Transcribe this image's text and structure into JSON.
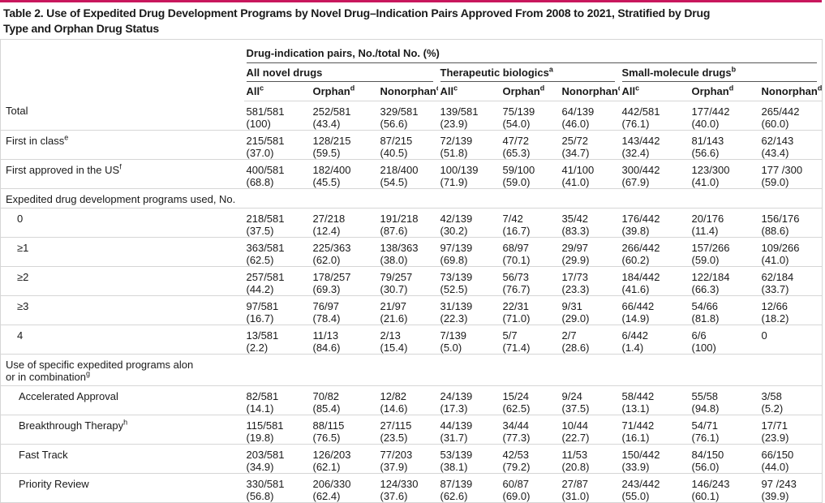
{
  "title": "Table 2. Use of Expedited Drug Development Programs by Novel Drug–Indication Pairs Approved From 2008 to 2021, Stratified by Drug Type and Orphan Drug Status",
  "header": {
    "spanner": "Drug-indication pairs, No./total No. (%)",
    "groups": [
      {
        "text": "All novel drugs"
      },
      {
        "text": "Therapeutic biologics",
        "sup": "a"
      },
      {
        "text": "Small-molecule drugs",
        "sup": "b"
      }
    ],
    "columns": [
      {
        "text": "All",
        "sup": "c"
      },
      {
        "text": "Orphan",
        "sup": "d"
      },
      {
        "text": "Nonorphan",
        "sup": "d"
      },
      {
        "text": "All",
        "sup": "c"
      },
      {
        "text": "Orphan",
        "sup": "d"
      },
      {
        "text": "Nonorphan",
        "sup": "d"
      },
      {
        "text": "All",
        "sup": "c"
      },
      {
        "text": "Orphan",
        "sup": "d"
      },
      {
        "text": "Nonorphan",
        "sup": "d"
      }
    ]
  },
  "rows": [
    {
      "label": "Total",
      "cells": [
        [
          "581/581",
          "(100)"
        ],
        [
          "252/581",
          "(43.4)"
        ],
        [
          "329/581",
          "(56.6)"
        ],
        [
          "139/581",
          "(23.9)"
        ],
        [
          "75/139",
          "(54.0)"
        ],
        [
          "64/139",
          "(46.0)"
        ],
        [
          "442/581",
          "(76.1)"
        ],
        [
          "177/442",
          "(40.0)"
        ],
        [
          "265/442",
          "(60.0)"
        ]
      ]
    },
    {
      "label": "First in class",
      "sup": "e",
      "cells": [
        [
          "215/581",
          "(37.0)"
        ],
        [
          "128/215",
          "(59.5)"
        ],
        [
          "87/215",
          "(40.5)"
        ],
        [
          "72/139",
          "(51.8)"
        ],
        [
          "47/72",
          "(65.3)"
        ],
        [
          "25/72",
          "(34.7)"
        ],
        [
          "143/442",
          "(32.4)"
        ],
        [
          "81/143",
          "(56.6)"
        ],
        [
          "62/143",
          "(43.4)"
        ]
      ]
    },
    {
      "label": "First approved in the US",
      "sup": "f",
      "cells": [
        [
          "400/581",
          "(68.8)"
        ],
        [
          "182/400",
          "(45.5)"
        ],
        [
          "218/400",
          "(54.5)"
        ],
        [
          "100/139",
          "(71.9)"
        ],
        [
          "59/100",
          "(59.0)"
        ],
        [
          "41/100",
          "(41.0)"
        ],
        [
          "300/442",
          "(67.9)"
        ],
        [
          "123/300",
          "(41.0)"
        ],
        [
          "177 /300",
          "(59.0)"
        ]
      ]
    }
  ],
  "sections": [
    {
      "title": [
        "Expedited drug development programs used, No."
      ],
      "rows": [
        {
          "label": "0",
          "cells": [
            [
              "218/581",
              "(37.5)"
            ],
            [
              "27/218",
              "(12.4)"
            ],
            [
              "191/218",
              "(87.6)"
            ],
            [
              "42/139",
              "(30.2)"
            ],
            [
              "7/42",
              "(16.7)"
            ],
            [
              "35/42",
              "(83.3)"
            ],
            [
              "176/442",
              "(39.8)"
            ],
            [
              "20/176",
              "(11.4)"
            ],
            [
              "156/176",
              "(88.6)"
            ]
          ]
        },
        {
          "label": "≥1",
          "cells": [
            [
              "363/581",
              "(62.5)"
            ],
            [
              "225/363",
              "(62.0)"
            ],
            [
              "138/363",
              "(38.0)"
            ],
            [
              "97/139",
              "(69.8)"
            ],
            [
              "68/97",
              "(70.1)"
            ],
            [
              "29/97",
              "(29.9)"
            ],
            [
              "266/442",
              "(60.2)"
            ],
            [
              "157/266",
              "(59.0)"
            ],
            [
              "109/266",
              "(41.0)"
            ]
          ]
        },
        {
          "label": "≥2",
          "cells": [
            [
              "257/581",
              "(44.2)"
            ],
            [
              "178/257",
              "(69.3)"
            ],
            [
              "79/257",
              "(30.7)"
            ],
            [
              "73/139",
              "(52.5)"
            ],
            [
              "56/73",
              "(76.7)"
            ],
            [
              "17/73",
              "(23.3)"
            ],
            [
              "184/442",
              "(41.6)"
            ],
            [
              "122/184",
              "(66.3)"
            ],
            [
              "62/184",
              "(33.7)"
            ]
          ]
        },
        {
          "label": "≥3",
          "cells": [
            [
              "97/581",
              "(16.7)"
            ],
            [
              "76/97",
              "(78.4)"
            ],
            [
              "21/97",
              "(21.6)"
            ],
            [
              "31/139",
              "(22.3)"
            ],
            [
              "22/31",
              "(71.0)"
            ],
            [
              "9/31",
              "(29.0)"
            ],
            [
              "66/442",
              "(14.9)"
            ],
            [
              "54/66",
              "(81.8)"
            ],
            [
              "12/66",
              "(18.2)"
            ]
          ]
        },
        {
          "label": "4",
          "cells": [
            [
              "13/581",
              "(2.2)"
            ],
            [
              "11/13",
              "(84.6)"
            ],
            [
              "2/13",
              "(15.4)"
            ],
            [
              "7/139",
              "(5.0)"
            ],
            [
              "5/7",
              "(71.4)"
            ],
            [
              "2/7",
              "(28.6)"
            ],
            [
              "6/442",
              "(1.4)"
            ],
            [
              "6/6",
              "(100)"
            ],
            [
              "0"
            ]
          ]
        }
      ]
    },
    {
      "title": [
        "Use of specific expedited programs alon",
        "or in combination"
      ],
      "sup": "g",
      "rows": [
        {
          "label": "Accelerated Approval",
          "cells": [
            [
              "82/581",
              "(14.1)"
            ],
            [
              "70/82",
              "(85.4)"
            ],
            [
              "12/82",
              "(14.6)"
            ],
            [
              "24/139",
              "(17.3)"
            ],
            [
              "15/24",
              "(62.5)"
            ],
            [
              "9/24",
              "(37.5)"
            ],
            [
              "58/442",
              "(13.1)"
            ],
            [
              "55/58",
              "(94.8)"
            ],
            [
              "3/58",
              "(5.2)"
            ]
          ]
        },
        {
          "label": "Breakthrough Therapy",
          "sup": "h",
          "cells": [
            [
              "115/581",
              "(19.8)"
            ],
            [
              "88/115",
              "(76.5)"
            ],
            [
              "27/115",
              "(23.5)"
            ],
            [
              "44/139",
              "(31.7)"
            ],
            [
              "34/44",
              "(77.3)"
            ],
            [
              "10/44",
              "(22.7)"
            ],
            [
              "71/442",
              "(16.1)"
            ],
            [
              "54/71",
              "(76.1)"
            ],
            [
              "17/71",
              "(23.9)"
            ]
          ]
        },
        {
          "label": "Fast Track",
          "cells": [
            [
              "203/581",
              "(34.9)"
            ],
            [
              "126/203",
              "(62.1)"
            ],
            [
              "77/203",
              "(37.9)"
            ],
            [
              "53/139",
              "(38.1)"
            ],
            [
              "42/53",
              "(79.2)"
            ],
            [
              "11/53",
              "(20.8)"
            ],
            [
              "150/442",
              "(33.9)"
            ],
            [
              "84/150",
              "(56.0)"
            ],
            [
              "66/150",
              "(44.0)"
            ]
          ]
        },
        {
          "label": "Priority Review",
          "cells": [
            [
              "330/581",
              "(56.8)"
            ],
            [
              "206/330",
              "(62.4)"
            ],
            [
              "124/330",
              "(37.6)"
            ],
            [
              "87/139",
              "(62.6)"
            ],
            [
              "60/87",
              "(69.0)"
            ],
            [
              "27/87",
              "(31.0)"
            ],
            [
              "243/442",
              "(55.0)"
            ],
            [
              "146/243",
              "(60.1)"
            ],
            [
              "97 /243",
              "(39.9)"
            ]
          ]
        }
      ]
    }
  ]
}
